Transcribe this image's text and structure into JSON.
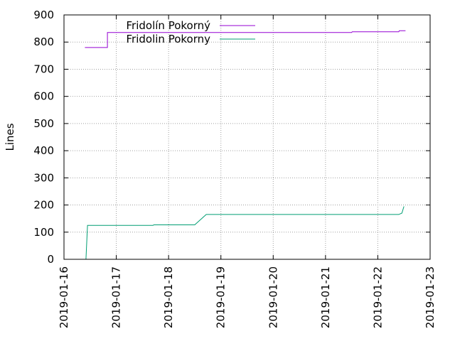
{
  "chart_data": {
    "type": "line",
    "title": "",
    "xlabel": "",
    "ylabel": "Lines",
    "ylim": [
      0,
      900
    ],
    "xlim": [
      "2019-01-16",
      "2019-01-23"
    ],
    "y_ticks": [
      0,
      100,
      200,
      300,
      400,
      500,
      600,
      700,
      800,
      900
    ],
    "x_ticks": [
      "2019-01-16",
      "2019-01-17",
      "2019-01-18",
      "2019-01-19",
      "2019-01-20",
      "2019-01-21",
      "2019-01-22",
      "2019-01-23"
    ],
    "grid": true,
    "legend_position": "top-left",
    "series": [
      {
        "name": "Fridolín Pokorný",
        "color": "#9400d3",
        "points": [
          {
            "x": 0.4,
            "y": 780
          },
          {
            "x": 0.83,
            "y": 780
          },
          {
            "x": 0.83,
            "y": 835
          },
          {
            "x": 5.5,
            "y": 835
          },
          {
            "x": 5.51,
            "y": 838
          },
          {
            "x": 6.4,
            "y": 838
          },
          {
            "x": 6.41,
            "y": 842
          },
          {
            "x": 6.53,
            "y": 842
          }
        ]
      },
      {
        "name": "Fridolin Pokorny",
        "color": "#009e73",
        "points": [
          {
            "x": 0.42,
            "y": 0
          },
          {
            "x": 0.45,
            "y": 125
          },
          {
            "x": 1.7,
            "y": 125
          },
          {
            "x": 1.72,
            "y": 127
          },
          {
            "x": 2.5,
            "y": 127
          },
          {
            "x": 2.72,
            "y": 165
          },
          {
            "x": 6.4,
            "y": 165
          },
          {
            "x": 6.46,
            "y": 170
          },
          {
            "x": 6.5,
            "y": 195
          }
        ]
      }
    ]
  }
}
